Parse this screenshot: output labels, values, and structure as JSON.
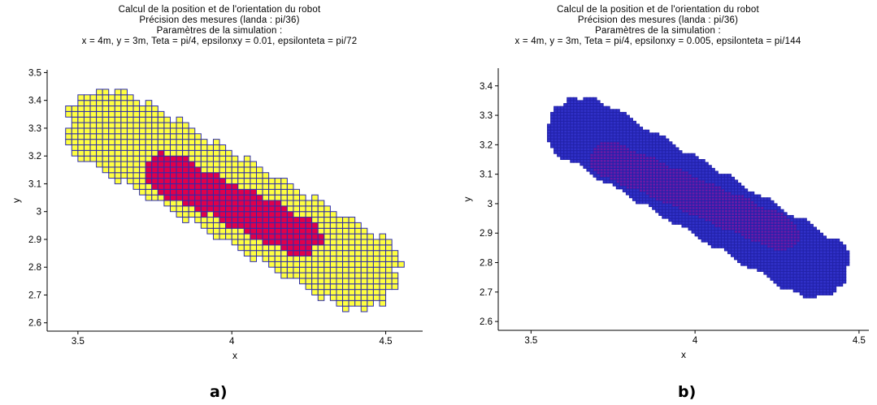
{
  "chart_data": [
    {
      "type": "scatter",
      "title": [
        "Calcul de la position et de l'orientation du robot",
        "Précision des mesures (landa : pi/36)",
        "Paramètres de la simulation :",
        "x = 4m, y = 3m, Teta = pi/4, epsilonxy = 0.01, epsilonteta = pi/72"
      ],
      "xlabel": "x",
      "ylabel": "y",
      "xlim": [
        3.4,
        4.62
      ],
      "ylim": [
        2.57,
        3.51
      ],
      "xticks": [
        "3.5",
        "4",
        "4.5"
      ],
      "xtick_values": [
        3.5,
        4.0,
        4.5
      ],
      "yticks": [
        "2.6",
        "2.7",
        "2.8",
        "2.9",
        "3",
        "3.1",
        "3.2",
        "3.3",
        "3.4",
        "3.5"
      ],
      "ytick_values": [
        2.6,
        2.7,
        2.8,
        2.9,
        3.0,
        3.1,
        3.2,
        3.3,
        3.4,
        3.5
      ],
      "cell_size": 0.02,
      "outer_color": "#ffff40",
      "inner_color": "#e0004a",
      "edge_color": "#2b2bb0",
      "outer_band": {
        "center_a": [
          3.6,
          3.3
        ],
        "center_b": [
          4.4,
          2.79
        ],
        "half_width": 0.14
      },
      "inner_band": {
        "center_a": [
          3.78,
          3.14
        ],
        "center_b": [
          4.22,
          2.91
        ],
        "half_width": 0.07
      },
      "caption": "a)"
    },
    {
      "type": "scatter",
      "title": [
        "Calcul de la position et de l'orientation du robot",
        "Précision des mesures (landa : pi/36)",
        "Paramètres de la simulation :",
        "x = 4m, y = 3m, Teta = pi/4, epsilonxy = 0.005, epsilonteta = pi/144"
      ],
      "xlabel": "x",
      "ylabel": "y",
      "xlim": [
        3.4,
        4.53
      ],
      "ylim": [
        2.57,
        3.46
      ],
      "xticks": [
        "3.5",
        "4",
        "4.5"
      ],
      "xtick_values": [
        3.5,
        4.0,
        4.5
      ],
      "yticks": [
        "2.6",
        "2.7",
        "2.8",
        "2.9",
        "3",
        "3.1",
        "3.2",
        "3.3",
        "3.4"
      ],
      "ytick_values": [
        2.6,
        2.7,
        2.8,
        2.9,
        3.0,
        3.1,
        3.2,
        3.3,
        3.4
      ],
      "cell_size": 0.01,
      "outer_color": "#3030c8",
      "inner_color": "#6a1aa8",
      "edge_color": "#2222aa",
      "outer_band": {
        "center_a": [
          3.66,
          3.25
        ],
        "center_b": [
          4.36,
          2.79
        ],
        "half_width": 0.11
      },
      "inner_band": {
        "center_a": [
          3.74,
          3.15
        ],
        "center_b": [
          4.26,
          2.9
        ],
        "half_width": 0.06
      },
      "caption": "b)"
    }
  ]
}
